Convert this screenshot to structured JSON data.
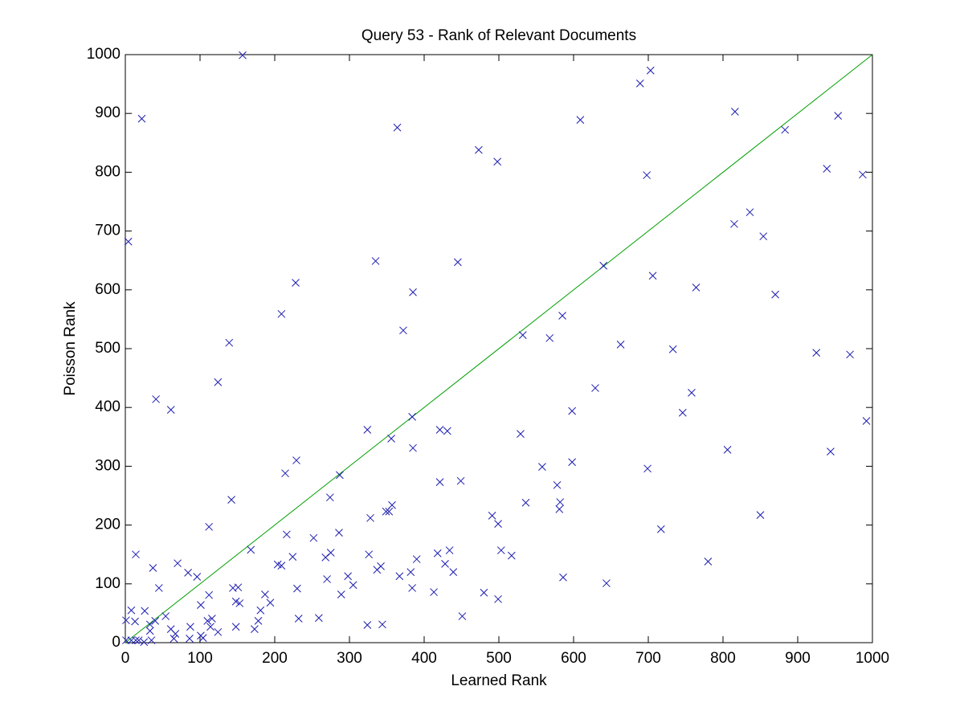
{
  "chart_data": {
    "type": "scatter",
    "title": "Query 53 - Rank of Relevant Documents",
    "x_label": "Learned Rank",
    "y_label": "Poisson Rank",
    "xlim": [
      0,
      1000
    ],
    "ylim": [
      0,
      1000
    ],
    "xticks": [
      0,
      100,
      200,
      300,
      400,
      500,
      600,
      700,
      800,
      900,
      1000
    ],
    "yticks": [
      0,
      100,
      200,
      300,
      400,
      500,
      600,
      700,
      800,
      900,
      1000
    ],
    "grid": false,
    "color": "#1c1cb0",
    "reference_line_color": "#00a000",
    "x": [
      157,
      22,
      4,
      689,
      703,
      816,
      954,
      883,
      609,
      364,
      473,
      498,
      939,
      698,
      987,
      836,
      815,
      854,
      640,
      335,
      445,
      228,
      385,
      706,
      764,
      870,
      209,
      585,
      372,
      532,
      568,
      139,
      663,
      733,
      925,
      970,
      124,
      629,
      758,
      41,
      61,
      598,
      746,
      384,
      992,
      324,
      421,
      431,
      529,
      356,
      385,
      806,
      944,
      229,
      598,
      558,
      699,
      214,
      287,
      449,
      421,
      578,
      274,
      142,
      536,
      582,
      357,
      581,
      353,
      349,
      491,
      850,
      328,
      499,
      112,
      717,
      216,
      286,
      252,
      168,
      434,
      503,
      275,
      418,
      326,
      14,
      224,
      517,
      268,
      390,
      780,
      70,
      428,
      37,
      342,
      337,
      204,
      209,
      382,
      439,
      84,
      96,
      298,
      367,
      586,
      270,
      644,
      305,
      45,
      144,
      151,
      230,
      384,
      413,
      480,
      187,
      289,
      112,
      499,
      148,
      153,
      194,
      101,
      181,
      8,
      26,
      54,
      451,
      1,
      116,
      232,
      259,
      40,
      13,
      178,
      110,
      33,
      324,
      344,
      87,
      114,
      148,
      173,
      61,
      33,
      124,
      67,
      101,
      1,
      8,
      18,
      35,
      65,
      86,
      104,
      14,
      25
    ],
    "y": [
      999,
      891,
      682,
      951,
      973,
      903,
      896,
      872,
      889,
      876,
      838,
      818,
      806,
      795,
      796,
      732,
      712,
      691,
      641,
      649,
      647,
      612,
      596,
      624,
      604,
      592,
      559,
      556,
      531,
      523,
      518,
      510,
      507,
      499,
      493,
      490,
      443,
      433,
      425,
      414,
      396,
      394,
      391,
      384,
      377,
      362,
      362,
      360,
      355,
      347,
      331,
      328,
      325,
      310,
      307,
      299,
      296,
      288,
      285,
      275,
      273,
      268,
      247,
      243,
      238,
      239,
      234,
      227,
      223,
      223,
      216,
      217,
      212,
      202,
      197,
      193,
      184,
      187,
      178,
      158,
      157,
      157,
      153,
      152,
      150,
      150,
      146,
      148,
      145,
      142,
      138,
      135,
      134,
      127,
      130,
      124,
      133,
      131,
      120,
      120,
      119,
      112,
      113,
      113,
      111,
      108,
      101,
      98,
      93,
      93,
      94,
      92,
      93,
      86,
      85,
      82,
      82,
      81,
      74,
      70,
      67,
      68,
      64,
      55,
      55,
      54,
      45,
      45,
      38,
      41,
      41,
      42,
      37,
      36,
      37,
      37,
      31,
      30,
      31,
      27,
      27,
      27,
      23,
      23,
      20,
      18,
      15,
      12,
      4,
      4,
      4,
      4,
      7,
      7,
      8,
      4,
      1
    ]
  }
}
